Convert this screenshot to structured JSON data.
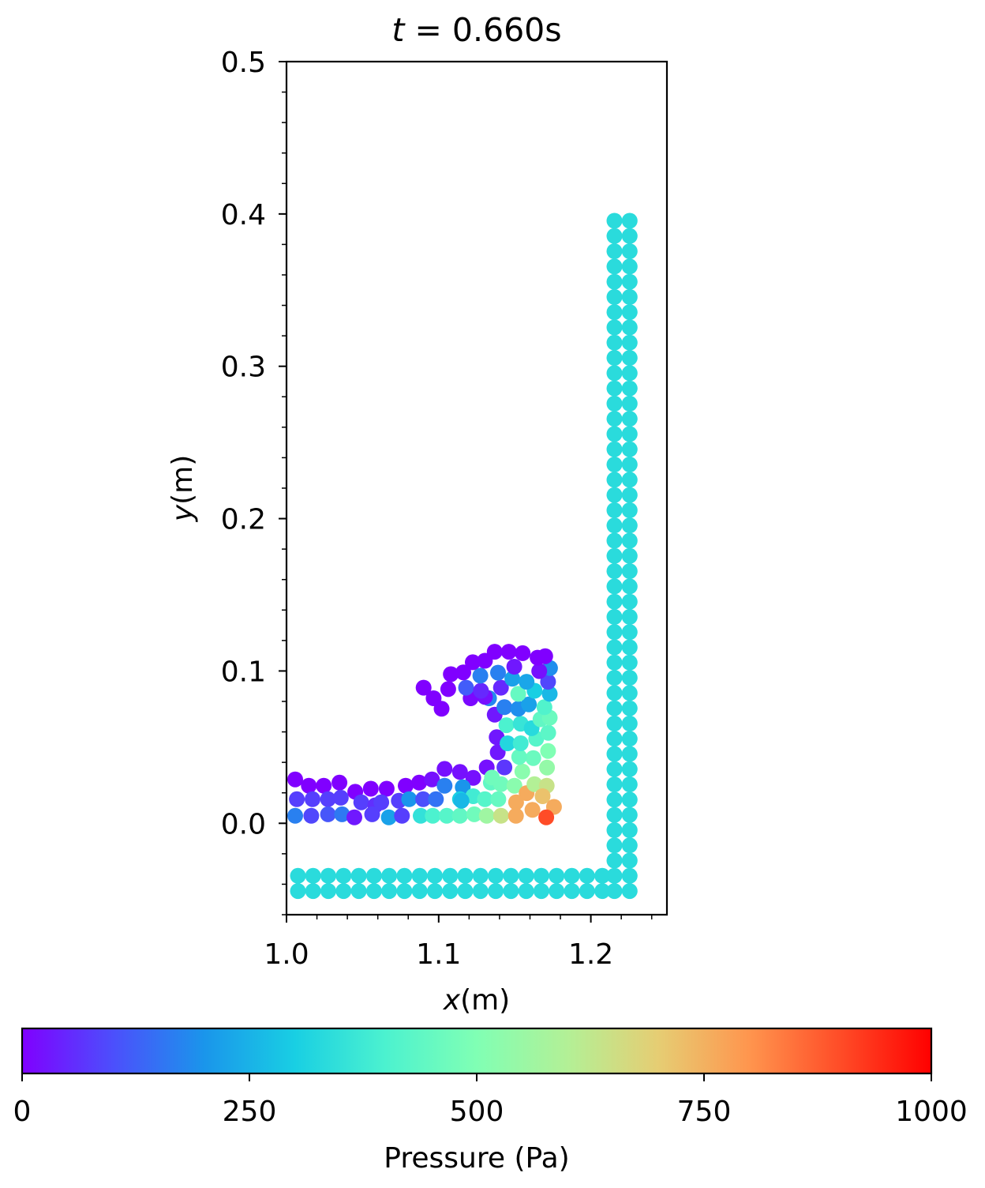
{
  "chart_data": {
    "type": "scatter",
    "title": {
      "italic": "t",
      "rest": " =  0.660s"
    },
    "xlabel": {
      "italic": "x",
      "rest": "(m)"
    },
    "ylabel": {
      "italic": "y",
      "rest": "(m)"
    },
    "xlim": [
      1.0,
      1.25
    ],
    "ylim": [
      -0.06,
      0.5
    ],
    "x_ticks": [
      1.0,
      1.1,
      1.2
    ],
    "x_tick_labels": [
      "1.0",
      "1.1",
      "1.2"
    ],
    "y_ticks": [
      0.0,
      0.1,
      0.2,
      0.3,
      0.4,
      0.5
    ],
    "y_tick_labels": [
      "0.0",
      "0.1",
      "0.2",
      "0.3",
      "0.4",
      "0.5"
    ],
    "grid": false,
    "colormap": "rainbow",
    "colorbar": {
      "label": "Pressure (Pa)",
      "range": [
        0,
        1000
      ],
      "ticks": [
        0,
        250,
        500,
        750,
        1000
      ],
      "tick_labels": [
        "0",
        "250",
        "500",
        "750",
        "1000"
      ],
      "orientation": "horizontal",
      "stops": [
        "#8000ff",
        "#4c4ffc",
        "#1a95eb",
        "#19cfe3",
        "#4cf2cf",
        "#80ffb4",
        "#b3f096",
        "#e6cd73",
        "#ff954e",
        "#ff4c27",
        "#ff0000"
      ]
    },
    "boundary": {
      "pressure": 333,
      "floor_rows_y": [
        -0.0345,
        -0.0445
      ],
      "floor_x_start": 1.0075,
      "floor_x_end": 1.2075,
      "floor_x_step": 0.01,
      "wall_columns_x": [
        1.2155,
        1.2255
      ],
      "wall_y_start": -0.0445,
      "wall_y_end": 0.3955,
      "wall_y_step": 0.01
    },
    "fluid_particles": [
      [
        1.0057,
        0.0288,
        0
      ],
      [
        1.0147,
        0.0247,
        0
      ],
      [
        1.0245,
        0.0247,
        0
      ],
      [
        1.0348,
        0.0267,
        0
      ],
      [
        1.0452,
        0.0207,
        0
      ],
      [
        1.0554,
        0.0227,
        0
      ],
      [
        1.0658,
        0.0227,
        0
      ],
      [
        1.0783,
        0.0247,
        0
      ],
      [
        1.0872,
        0.0267,
        0
      ],
      [
        1.0956,
        0.0288,
        20
      ],
      [
        1.1039,
        0.0357,
        20
      ],
      [
        1.114,
        0.0337,
        20
      ],
      [
        1.1227,
        0.0298,
        20
      ],
      [
        1.1316,
        0.0367,
        20
      ],
      [
        1.1388,
        0.0466,
        30
      ],
      [
        1.1381,
        0.0565,
        30
      ],
      [
        1.0068,
        0.0158,
        80
      ],
      [
        1.0171,
        0.0158,
        80
      ],
      [
        1.0273,
        0.0158,
        80
      ],
      [
        1.0357,
        0.0168,
        80
      ],
      [
        1.0491,
        0.0138,
        80
      ],
      [
        1.0584,
        0.0118,
        60
      ],
      [
        1.0623,
        0.0138,
        80
      ],
      [
        1.0738,
        0.0148,
        80
      ],
      [
        1.0806,
        0.0158,
        200
      ],
      [
        1.0898,
        0.0158,
        100
      ],
      [
        1.0982,
        0.0158,
        150
      ],
      [
        1.1039,
        0.0247,
        170
      ],
      [
        1.1158,
        0.0237,
        200
      ],
      [
        1.114,
        0.0158,
        300
      ],
      [
        1.1227,
        0.0178,
        380
      ],
      [
        1.1304,
        0.0158,
        420
      ],
      [
        1.1392,
        0.0158,
        450
      ],
      [
        1.1432,
        0.0367,
        70
      ],
      [
        1.1343,
        0.0267,
        440
      ],
      [
        1.141,
        0.0257,
        470
      ],
      [
        1.1498,
        0.0247,
        520
      ],
      [
        1.1578,
        0.0198,
        760
      ],
      [
        1.1629,
        0.0257,
        600
      ],
      [
        1.171,
        0.0247,
        640
      ],
      [
        1.1509,
        0.0138,
        760
      ],
      [
        1.1616,
        0.0088,
        760
      ],
      [
        1.1683,
        0.0178,
        720
      ],
      [
        1.1758,
        0.0108,
        760
      ],
      [
        1.1707,
        0.0039,
        900
      ],
      [
        1.0057,
        0.0049,
        170
      ],
      [
        1.0163,
        0.0049,
        90
      ],
      [
        1.0273,
        0.0059,
        110
      ],
      [
        1.0365,
        0.0059,
        160
      ],
      [
        1.0446,
        0.0039,
        30
      ],
      [
        1.0563,
        0.0059,
        80
      ],
      [
        1.0672,
        0.0039,
        220
      ],
      [
        1.0759,
        0.0049,
        80
      ],
      [
        1.0882,
        0.0049,
        350
      ],
      [
        1.0961,
        0.0049,
        400
      ],
      [
        1.1053,
        0.0049,
        420
      ],
      [
        1.114,
        0.0049,
        440
      ],
      [
        1.1234,
        0.0059,
        470
      ],
      [
        1.1316,
        0.0049,
        560
      ],
      [
        1.141,
        0.0049,
        640
      ],
      [
        1.1508,
        0.0049,
        760
      ],
      [
        1.115,
        0.0148,
        260
      ],
      [
        1.135,
        0.03,
        470
      ],
      [
        1.155,
        0.034,
        520
      ],
      [
        1.1622,
        0.0428,
        460
      ],
      [
        1.1719,
        0.0475,
        500
      ],
      [
        1.1712,
        0.0366,
        540
      ],
      [
        1.1529,
        0.0436,
        450
      ],
      [
        1.1453,
        0.0525,
        320
      ],
      [
        1.1539,
        0.0525,
        380
      ],
      [
        1.1641,
        0.0555,
        420
      ],
      [
        1.172,
        0.0594,
        430
      ],
      [
        1.1445,
        0.0644,
        400
      ],
      [
        1.1539,
        0.0654,
        360
      ],
      [
        1.1611,
        0.0624,
        330
      ],
      [
        1.1669,
        0.0683,
        440
      ],
      [
        1.173,
        0.0693,
        460
      ],
      [
        1.1368,
        0.0713,
        30
      ],
      [
        1.1331,
        0.0821,
        180
      ],
      [
        1.1432,
        0.0762,
        170
      ],
      [
        1.1523,
        0.0752,
        190
      ],
      [
        1.1593,
        0.0781,
        220
      ],
      [
        1.1695,
        0.0762,
        410
      ],
      [
        1.173,
        0.085,
        260
      ],
      [
        1.163,
        0.087,
        300
      ],
      [
        1.1523,
        0.085,
        450
      ],
      [
        1.1409,
        0.089,
        50
      ],
      [
        1.1304,
        0.083,
        20
      ],
      [
        1.121,
        0.0821,
        10
      ],
      [
        1.118,
        0.089,
        120
      ],
      [
        1.1278,
        0.087,
        50
      ],
      [
        1.1274,
        0.0969,
        170
      ],
      [
        1.139,
        0.0989,
        170
      ],
      [
        1.1484,
        0.0949,
        220
      ],
      [
        1.1578,
        0.0929,
        230
      ],
      [
        1.1719,
        0.0929,
        90
      ],
      [
        1.1732,
        0.1019,
        190
      ],
      [
        1.1661,
        0.0999,
        20
      ],
      [
        1.1497,
        0.1028,
        30
      ],
      [
        1.108,
        0.0979,
        0
      ],
      [
        1.1162,
        0.0991,
        0
      ],
      [
        1.1224,
        0.1057,
        0
      ],
      [
        1.1304,
        0.1067,
        0
      ],
      [
        1.1368,
        0.1126,
        0
      ],
      [
        1.1461,
        0.1126,
        0
      ],
      [
        1.1552,
        0.1117,
        0
      ],
      [
        1.165,
        0.1087,
        0
      ],
      [
        1.17,
        0.1097,
        0
      ],
      [
        1.0901,
        0.089,
        0
      ],
      [
        1.0967,
        0.0821,
        0
      ],
      [
        1.1019,
        0.0752,
        0
      ],
      [
        1.1063,
        0.0881,
        0
      ]
    ]
  }
}
